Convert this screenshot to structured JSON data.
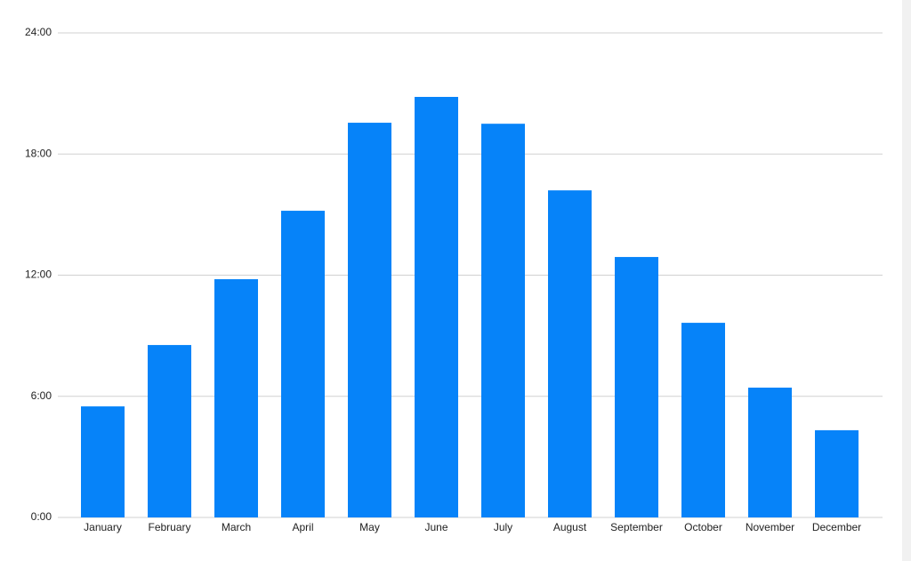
{
  "chart_data": {
    "type": "bar",
    "categories": [
      "January",
      "February",
      "March",
      "April",
      "May",
      "June",
      "July",
      "August",
      "September",
      "October",
      "November",
      "December"
    ],
    "values": [
      5.5,
      8.54,
      11.8,
      15.19,
      19.55,
      20.83,
      19.5,
      16.2,
      12.9,
      9.64,
      6.43,
      4.32
    ],
    "color": "#0683f9",
    "ylim": [
      0,
      24
    ],
    "yticks": [
      {
        "value": 0,
        "label": "0:00"
      },
      {
        "value": 6,
        "label": "6:00"
      },
      {
        "value": 12,
        "label": "12:00"
      },
      {
        "value": 18,
        "label": "18:00"
      },
      {
        "value": 24,
        "label": "24:00"
      }
    ],
    "grid": true
  }
}
